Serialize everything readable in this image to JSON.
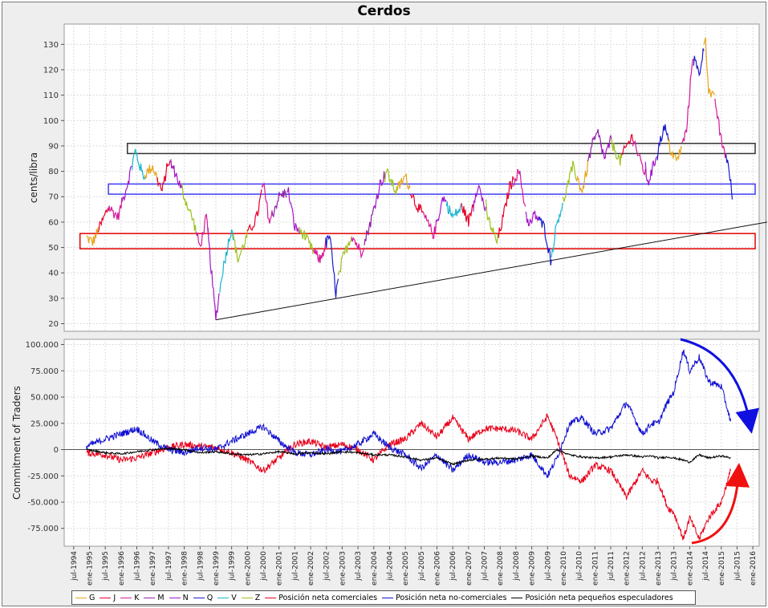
{
  "chart_data": [
    {
      "type": "line",
      "title": "Cerdos",
      "ylabel": "cents/libra",
      "ylim": [
        17,
        138
      ],
      "yticks": [
        20,
        30,
        40,
        50,
        60,
        70,
        80,
        90,
        100,
        110,
        120,
        130
      ],
      "xlim": [
        1994.2,
        2016.2
      ],
      "series": [
        {
          "name": "G",
          "color": "#e6a51a"
        },
        {
          "name": "J",
          "color": "#e8002a"
        },
        {
          "name": "K",
          "color": "#d51a9a"
        },
        {
          "name": "M",
          "color": "#8f1fa8"
        },
        {
          "name": "N",
          "color": "#a416c8"
        },
        {
          "name": "Q",
          "color": "#1a1acc"
        },
        {
          "name": "V",
          "color": "#18b4cc"
        },
        {
          "name": "Z",
          "color": "#9cc21e"
        }
      ],
      "price_path": [
        [
          1994.9,
          54
        ],
        [
          1995.1,
          52
        ],
        [
          1995.4,
          60
        ],
        [
          1995.6,
          66
        ],
        [
          1995.9,
          62
        ],
        [
          1996.2,
          75
        ],
        [
          1996.45,
          88
        ],
        [
          1996.7,
          78
        ],
        [
          1997.0,
          82
        ],
        [
          1997.3,
          72
        ],
        [
          1997.5,
          84
        ],
        [
          1997.7,
          80
        ],
        [
          1998.0,
          70
        ],
        [
          1998.3,
          60
        ],
        [
          1998.5,
          50
        ],
        [
          1998.7,
          62
        ],
        [
          1998.9,
          35
        ],
        [
          1999.0,
          22
        ],
        [
          1999.2,
          40
        ],
        [
          1999.5,
          58
        ],
        [
          1999.7,
          45
        ],
        [
          2000.0,
          55
        ],
        [
          2000.3,
          62
        ],
        [
          2000.5,
          75
        ],
        [
          2000.7,
          60
        ],
        [
          2001.0,
          70
        ],
        [
          2001.3,
          72
        ],
        [
          2001.5,
          58
        ],
        [
          2001.8,
          55
        ],
        [
          2002.0,
          50
        ],
        [
          2002.3,
          45
        ],
        [
          2002.6,
          55
        ],
        [
          2002.8,
          32
        ],
        [
          2003.0,
          45
        ],
        [
          2003.3,
          55
        ],
        [
          2003.6,
          48
        ],
        [
          2003.9,
          60
        ],
        [
          2004.2,
          75
        ],
        [
          2004.4,
          80
        ],
        [
          2004.7,
          72
        ],
        [
          2005.0,
          78
        ],
        [
          2005.3,
          68
        ],
        [
          2005.6,
          62
        ],
        [
          2005.9,
          55
        ],
        [
          2006.2,
          70
        ],
        [
          2006.5,
          62
        ],
        [
          2006.8,
          66
        ],
        [
          2007.0,
          60
        ],
        [
          2007.3,
          75
        ],
        [
          2007.6,
          62
        ],
        [
          2007.9,
          52
        ],
        [
          2008.1,
          62
        ],
        [
          2008.3,
          74
        ],
        [
          2008.6,
          80
        ],
        [
          2008.9,
          58
        ],
        [
          2009.1,
          63
        ],
        [
          2009.4,
          58
        ],
        [
          2009.6,
          45
        ],
        [
          2009.8,
          60
        ],
        [
          2010.0,
          68
        ],
        [
          2010.3,
          82
        ],
        [
          2010.6,
          72
        ],
        [
          2010.9,
          90
        ],
        [
          2011.1,
          95
        ],
        [
          2011.3,
          85
        ],
        [
          2011.5,
          92
        ],
        [
          2011.8,
          84
        ],
        [
          2012.0,
          90
        ],
        [
          2012.2,
          94
        ],
        [
          2012.4,
          85
        ],
        [
          2012.7,
          76
        ],
        [
          2012.9,
          84
        ],
        [
          2013.2,
          98
        ],
        [
          2013.4,
          88
        ],
        [
          2013.6,
          84
        ],
        [
          2013.9,
          96
        ],
        [
          2014.1,
          126
        ],
        [
          2014.3,
          118
        ],
        [
          2014.5,
          133
        ],
        [
          2014.6,
          112
        ],
        [
          2014.8,
          108
        ],
        [
          2015.0,
          92
        ],
        [
          2015.2,
          84
        ],
        [
          2015.35,
          70
        ]
      ],
      "annotations": {
        "black_box": [
          87,
          91
        ],
        "blue_box": [
          71,
          75
        ],
        "red_box": [
          49.5,
          55.5
        ],
        "trendline": [
          [
            1999.0,
            21.5
          ],
          [
            2016.2,
            60
          ]
        ]
      }
    },
    {
      "type": "line",
      "ylabel": "Commitment of Traders",
      "ylim": [
        -92000,
        105000
      ],
      "yticks": [
        -75000,
        -50000,
        -25000,
        0,
        25000,
        50000,
        75000,
        100000
      ],
      "ytick_labels": [
        "-75.000",
        "-50.000",
        "-25.000",
        "0",
        "25.000",
        "50.000",
        "75.000",
        "100.000"
      ],
      "xlim": [
        1994.2,
        2016.2
      ],
      "x_tick_labels": [
        "jul-1994",
        "ene-1995",
        "jul-1995",
        "ene-1996",
        "jul-1996",
        "ene-1997",
        "jul-1997",
        "ene-1998",
        "jul-1998",
        "ene-1999",
        "jul-1999",
        "ene-2000",
        "jul-2000",
        "ene-2001",
        "jul-2001",
        "ene-2002",
        "jul-2002",
        "ene-2003",
        "jul-2003",
        "ene-2004",
        "jul-2004",
        "ene-2005",
        "jul-2005",
        "ene-2006",
        "jul-2006",
        "ene-2007",
        "jul-2007",
        "ene-2008",
        "jul-2008",
        "ene-2009",
        "jul-2009",
        "ene-2010",
        "jul-2010",
        "ene-2011",
        "jul-2011",
        "ene-2012",
        "jul-2012",
        "ene-2013",
        "jul-2013",
        "ene-2014",
        "jul-2014",
        "ene-2015",
        "jul-2015",
        "ene-2016"
      ],
      "series": [
        {
          "name": "Posición neta comerciales",
          "color": "#e8001a",
          "points": [
            [
              1994.9,
              -3000
            ],
            [
              1995.5,
              -5000
            ],
            [
              1996.0,
              -10000
            ],
            [
              1996.5,
              -8000
            ],
            [
              1997.0,
              -3000
            ],
            [
              1997.5,
              2000
            ],
            [
              1998.0,
              5000
            ],
            [
              1998.5,
              3000
            ],
            [
              1999.0,
              2000
            ],
            [
              1999.5,
              -3000
            ],
            [
              2000.0,
              -10000
            ],
            [
              2000.5,
              -20000
            ],
            [
              2001.0,
              -8000
            ],
            [
              2001.5,
              5000
            ],
            [
              2002.0,
              8000
            ],
            [
              2002.5,
              2000
            ],
            [
              2003.0,
              5000
            ],
            [
              2003.5,
              0
            ],
            [
              2004.0,
              -10000
            ],
            [
              2004.5,
              5000
            ],
            [
              2005.0,
              10000
            ],
            [
              2005.5,
              25000
            ],
            [
              2006.0,
              12000
            ],
            [
              2006.5,
              30000
            ],
            [
              2007.0,
              10000
            ],
            [
              2007.5,
              20000
            ],
            [
              2008.0,
              20000
            ],
            [
              2008.5,
              18000
            ],
            [
              2009.0,
              10000
            ],
            [
              2009.5,
              32000
            ],
            [
              2009.8,
              10000
            ],
            [
              2010.2,
              -25000
            ],
            [
              2010.6,
              -30000
            ],
            [
              2011.0,
              -15000
            ],
            [
              2011.5,
              -20000
            ],
            [
              2012.0,
              -45000
            ],
            [
              2012.5,
              -20000
            ],
            [
              2012.8,
              -30000
            ],
            [
              2013.0,
              -30000
            ],
            [
              2013.3,
              -55000
            ],
            [
              2013.5,
              -60000
            ],
            [
              2013.8,
              -85000
            ],
            [
              2014.0,
              -65000
            ],
            [
              2014.3,
              -85000
            ],
            [
              2014.6,
              -65000
            ],
            [
              2015.0,
              -50000
            ],
            [
              2015.3,
              -20000
            ]
          ]
        },
        {
          "name": "Posición neta no-comerciales",
          "color": "#1010d0",
          "points": [
            [
              1994.9,
              3000
            ],
            [
              1995.5,
              10000
            ],
            [
              1996.0,
              15000
            ],
            [
              1996.5,
              20000
            ],
            [
              1997.0,
              8000
            ],
            [
              1997.5,
              0
            ],
            [
              1998.0,
              -3000
            ],
            [
              1998.5,
              2000
            ],
            [
              1999.0,
              0
            ],
            [
              1999.5,
              8000
            ],
            [
              2000.0,
              15000
            ],
            [
              2000.5,
              22000
            ],
            [
              2001.0,
              8000
            ],
            [
              2001.5,
              -3000
            ],
            [
              2002.0,
              -5000
            ],
            [
              2002.5,
              0
            ],
            [
              2003.0,
              -2000
            ],
            [
              2003.5,
              5000
            ],
            [
              2004.0,
              15000
            ],
            [
              2004.5,
              2000
            ],
            [
              2005.0,
              -5000
            ],
            [
              2005.5,
              -18000
            ],
            [
              2006.0,
              -5000
            ],
            [
              2006.5,
              -20000
            ],
            [
              2007.0,
              -5000
            ],
            [
              2007.5,
              -12000
            ],
            [
              2008.0,
              -12000
            ],
            [
              2008.5,
              -10000
            ],
            [
              2009.0,
              -5000
            ],
            [
              2009.5,
              -25000
            ],
            [
              2009.8,
              -8000
            ],
            [
              2010.2,
              25000
            ],
            [
              2010.6,
              30000
            ],
            [
              2011.0,
              15000
            ],
            [
              2011.5,
              20000
            ],
            [
              2012.0,
              45000
            ],
            [
              2012.5,
              15000
            ],
            [
              2012.8,
              25000
            ],
            [
              2013.0,
              25000
            ],
            [
              2013.3,
              45000
            ],
            [
              2013.5,
              55000
            ],
            [
              2013.8,
              95000
            ],
            [
              2014.0,
              75000
            ],
            [
              2014.3,
              88000
            ],
            [
              2014.6,
              65000
            ],
            [
              2015.0,
              60000
            ],
            [
              2015.3,
              27000
            ]
          ]
        },
        {
          "name": "Posición neta pequeños especuladores",
          "color": "#000000",
          "points": [
            [
              1994.9,
              0
            ],
            [
              1995.5,
              -3000
            ],
            [
              1996.0,
              -4000
            ],
            [
              1996.5,
              -2000
            ],
            [
              1997.0,
              0
            ],
            [
              1997.5,
              1000
            ],
            [
              1998.0,
              0
            ],
            [
              1998.5,
              -3000
            ],
            [
              1999.0,
              -2000
            ],
            [
              1999.5,
              -4000
            ],
            [
              2000.0,
              -5000
            ],
            [
              2000.5,
              -4000
            ],
            [
              2001.0,
              -2000
            ],
            [
              2001.5,
              -4000
            ],
            [
              2002.0,
              -3000
            ],
            [
              2002.5,
              -4000
            ],
            [
              2003.0,
              -2000
            ],
            [
              2003.5,
              -3000
            ],
            [
              2004.0,
              -5000
            ],
            [
              2004.5,
              -5000
            ],
            [
              2005.0,
              -7000
            ],
            [
              2005.5,
              -10000
            ],
            [
              2006.0,
              -8000
            ],
            [
              2006.5,
              -14000
            ],
            [
              2007.0,
              -10000
            ],
            [
              2007.5,
              -9000
            ],
            [
              2008.0,
              -8000
            ],
            [
              2008.5,
              -9000
            ],
            [
              2009.0,
              -6000
            ],
            [
              2009.5,
              -8000
            ],
            [
              2009.8,
              0
            ],
            [
              2010.2,
              -5000
            ],
            [
              2010.6,
              -7000
            ],
            [
              2011.0,
              -8000
            ],
            [
              2011.5,
              -7000
            ],
            [
              2012.0,
              -5000
            ],
            [
              2012.5,
              -7000
            ],
            [
              2012.8,
              -6000
            ],
            [
              2013.0,
              -8000
            ],
            [
              2013.3,
              -7000
            ],
            [
              2013.5,
              -8000
            ],
            [
              2013.8,
              -10000
            ],
            [
              2014.0,
              -12000
            ],
            [
              2014.3,
              -5000
            ],
            [
              2014.6,
              -8000
            ],
            [
              2015.0,
              -6000
            ],
            [
              2015.3,
              -8000
            ]
          ]
        }
      ],
      "annotations": {
        "blue_arrow_direction": "down",
        "red_arrow_direction": "up"
      }
    }
  ],
  "legend": {
    "items": [
      {
        "label": "G",
        "color": "#e6a51a"
      },
      {
        "label": "J",
        "color": "#e8002a"
      },
      {
        "label": "K",
        "color": "#d51a9a"
      },
      {
        "label": "M",
        "color": "#8f1fa8"
      },
      {
        "label": "N",
        "color": "#a416c8"
      },
      {
        "label": "Q",
        "color": "#1a1acc"
      },
      {
        "label": "V",
        "color": "#18b4cc"
      },
      {
        "label": "Z",
        "color": "#9cc21e"
      },
      {
        "label": "Posición neta comerciales",
        "color": "#e8001a"
      },
      {
        "label": "Posición neta no-comerciales",
        "color": "#1010d0"
      },
      {
        "label": "Posición neta pequeños especuladores",
        "color": "#000000"
      }
    ]
  }
}
